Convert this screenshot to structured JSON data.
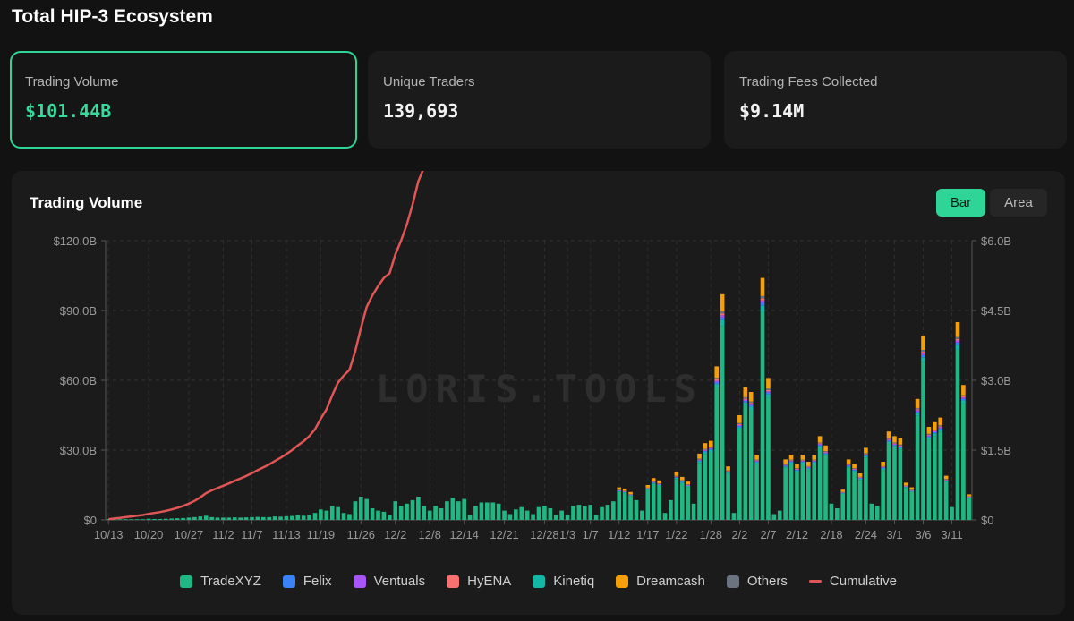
{
  "page": {
    "title": "Total HIP-3 Ecosystem"
  },
  "cards": [
    {
      "label": "Trading Volume",
      "value": "$101.44B"
    },
    {
      "label": "Unique Traders",
      "value": "139,693"
    },
    {
      "label": "Trading Fees Collected",
      "value": "$9.14M"
    }
  ],
  "panel": {
    "title": "Trading Volume",
    "toggle_bar": "Bar",
    "toggle_area": "Area",
    "watermark": "LORIS.TOOLS"
  },
  "colors": {
    "TradeXYZ": "#1fb885",
    "Felix": "#3b82f6",
    "Ventuals": "#a855f7",
    "HyENA": "#f87171",
    "Kinetiq": "#14b8a6",
    "Dreamcash": "#f59e0b",
    "Others": "#6b7280",
    "Cumulative": "#e05555",
    "accent": "#2fd597"
  },
  "legend": [
    "TradeXYZ",
    "Felix",
    "Ventuals",
    "HyENA",
    "Kinetiq",
    "Dreamcash",
    "Others",
    "Cumulative"
  ],
  "chart_data": {
    "type": "bar",
    "title": "Trading Volume",
    "stacked": true,
    "y_left": {
      "ticks": [
        "$0",
        "$30.0B",
        "$60.0B",
        "$90.0B",
        "$120.0B"
      ],
      "range": [
        0,
        120
      ]
    },
    "y_right": {
      "ticks": [
        "$0",
        "$1.5B",
        "$3.0B",
        "$4.5B",
        "$6.0B"
      ],
      "range": [
        0,
        6
      ]
    },
    "x_ticks": [
      {
        "index": 0,
        "label": "10/13"
      },
      {
        "index": 7,
        "label": "10/20"
      },
      {
        "index": 14,
        "label": "10/27"
      },
      {
        "index": 20,
        "label": "11/2"
      },
      {
        "index": 25,
        "label": "11/7"
      },
      {
        "index": 31,
        "label": "11/13"
      },
      {
        "index": 37,
        "label": "11/19"
      },
      {
        "index": 44,
        "label": "11/26"
      },
      {
        "index": 50,
        "label": "12/2"
      },
      {
        "index": 56,
        "label": "12/8"
      },
      {
        "index": 62,
        "label": "12/14"
      },
      {
        "index": 69,
        "label": "12/21"
      },
      {
        "index": 76,
        "label": "12/28"
      },
      {
        "index": 80,
        "label": "1/3"
      },
      {
        "index": 84,
        "label": "1/7"
      },
      {
        "index": 89,
        "label": "1/12"
      },
      {
        "index": 94,
        "label": "1/17"
      },
      {
        "index": 99,
        "label": "1/22"
      },
      {
        "index": 105,
        "label": "1/28"
      },
      {
        "index": 110,
        "label": "2/2"
      },
      {
        "index": 115,
        "label": "2/7"
      },
      {
        "index": 120,
        "label": "2/12"
      },
      {
        "index": 126,
        "label": "2/18"
      },
      {
        "index": 132,
        "label": "2/24"
      },
      {
        "index": 137,
        "label": "3/1"
      },
      {
        "index": 142,
        "label": "3/6"
      },
      {
        "index": 147,
        "label": "3/11"
      }
    ],
    "series_order": [
      "TradeXYZ",
      "Kinetiq",
      "Felix",
      "Ventuals",
      "HyENA",
      "Others",
      "Dreamcash"
    ],
    "daily_total_B": [
      0.3,
      0.3,
      0.3,
      0.3,
      0.3,
      0.3,
      0.3,
      0.5,
      0.4,
      0.4,
      0.5,
      0.6,
      0.7,
      0.8,
      1.0,
      1.2,
      1.5,
      1.8,
      1.2,
      1.0,
      1.0,
      1.0,
      1.1,
      1.0,
      1.1,
      1.2,
      1.3,
      1.2,
      1.2,
      1.5,
      1.4,
      1.6,
      1.7,
      2.0,
      1.8,
      2.2,
      3.0,
      4.5,
      4.0,
      6.0,
      5.5,
      3.0,
      2.5,
      8.0,
      10.0,
      9.0,
      5.0,
      4.0,
      3.5,
      2.0,
      8.0,
      6.0,
      7.0,
      8.5,
      10.0,
      6.0,
      4.0,
      6.0,
      5.0,
      8.0,
      9.5,
      8.0,
      9.0,
      2.0,
      6.0,
      7.5,
      7.5,
      7.5,
      7.0,
      4.0,
      2.5,
      4.5,
      5.5,
      4.0,
      2.5,
      5.5,
      6.0,
      5.0,
      2.0,
      4.0,
      2.0,
      6.0,
      6.5,
      6.0,
      6.5,
      2.0,
      5.5,
      6.5,
      8.0,
      14.0,
      13.5,
      12.0,
      8.5,
      4.0,
      15.0,
      18.0,
      17.0,
      3.0,
      8.5,
      20.5,
      18.5,
      16.5,
      7.0,
      28.5,
      33.0,
      34.0,
      66.0,
      97.0,
      23.0,
      3.0,
      45.0,
      57.0,
      55.0,
      28.0,
      104.0,
      61.0,
      2.5,
      4.0,
      26.0,
      28.0,
      24.0,
      28.0,
      25.0,
      28.0,
      36.0,
      32.0,
      7.0,
      5.0,
      13.0,
      26.0,
      24.0,
      20.0,
      31.0,
      7.0,
      6.0,
      25.0,
      38.0,
      36.0,
      35.0,
      16.0,
      14.0,
      52.0,
      79.0,
      40.0,
      42.0,
      44.0,
      19.0,
      5.5,
      85.0,
      58.0,
      11.0
    ]
  }
}
